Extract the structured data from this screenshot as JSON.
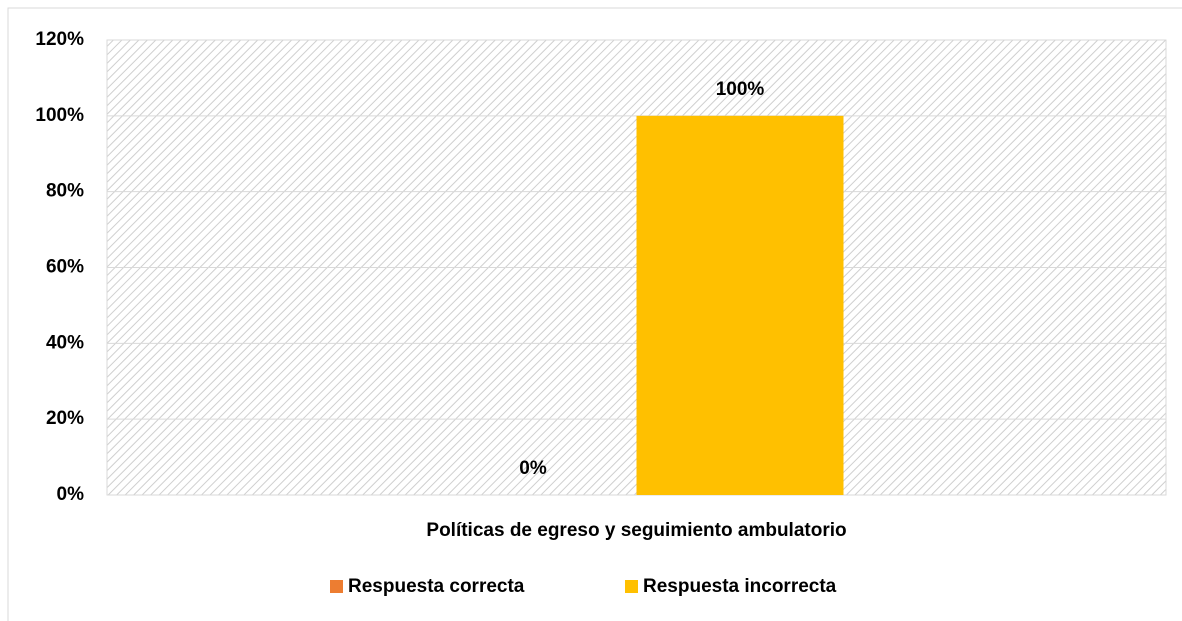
{
  "chart_data": {
    "type": "bar",
    "categories": [
      "Políticas de egreso y seguimiento ambulatorio"
    ],
    "series": [
      {
        "name": "Respuesta correcta",
        "color": "#ED7D31",
        "values": [
          0
        ],
        "value_labels": [
          "0%"
        ]
      },
      {
        "name": "Respuesta incorrecta",
        "color": "#FFC000",
        "values": [
          100
        ],
        "value_labels": [
          "100%"
        ]
      }
    ],
    "ylim": [
      0,
      120
    ],
    "yticks": [
      {
        "value": 0,
        "label": "0%"
      },
      {
        "value": 20,
        "label": "20%"
      },
      {
        "value": 40,
        "label": "40%"
      },
      {
        "value": 60,
        "label": "60%"
      },
      {
        "value": 80,
        "label": "80%"
      },
      {
        "value": 100,
        "label": "100%"
      },
      {
        "value": 120,
        "label": "120%"
      }
    ],
    "grid": true,
    "legend": "bottom"
  }
}
